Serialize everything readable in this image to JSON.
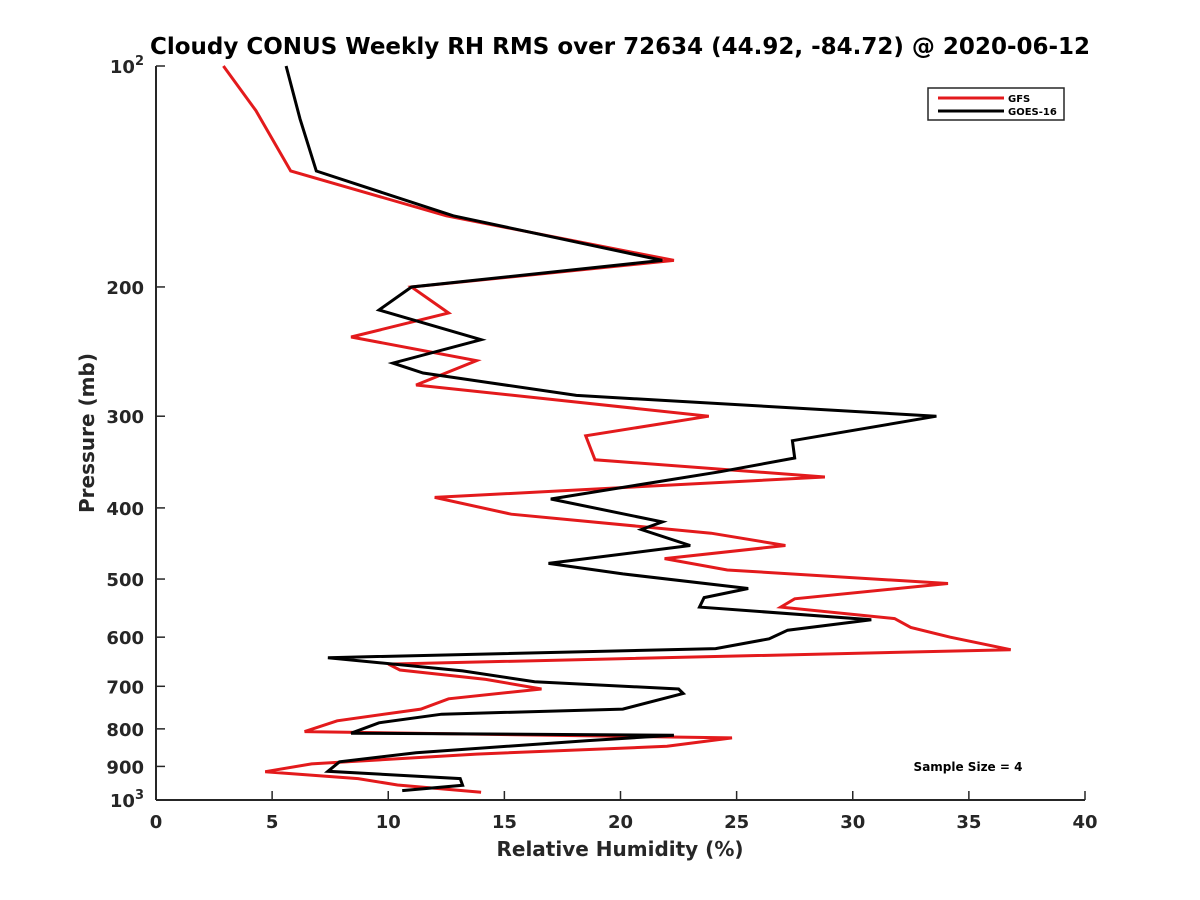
{
  "chart_data": {
    "type": "line",
    "title": "Cloudy CONUS Weekly RH RMS over 72634 (44.92, -84.72) @ 2020-06-12",
    "xlabel": "Relative Humidity (%)",
    "ylabel": "Pressure (mb)",
    "xlim": [
      0,
      40
    ],
    "ylim": [
      100,
      1000
    ],
    "yscale": "log",
    "y_inverted": true,
    "xticks": [
      0,
      5,
      10,
      15,
      20,
      25,
      30,
      35,
      40
    ],
    "yticks": [
      {
        "value": 100,
        "base": "10",
        "exp": "2"
      },
      {
        "value": 200,
        "label": "200"
      },
      {
        "value": 300,
        "label": "300"
      },
      {
        "value": 400,
        "label": "400"
      },
      {
        "value": 500,
        "label": "500"
      },
      {
        "value": 600,
        "label": "600"
      },
      {
        "value": 700,
        "label": "700"
      },
      {
        "value": 800,
        "label": "800"
      },
      {
        "value": 900,
        "label": "900"
      },
      {
        "value": 1000,
        "base": "10",
        "exp": "3"
      }
    ],
    "grid": false,
    "legend_position": "top-right",
    "annotation": "Sample Size = 4",
    "series": [
      {
        "name": "GFS",
        "color": "#e31a1c",
        "points": [
          [
            2.9,
            100
          ],
          [
            4.3,
            115
          ],
          [
            5.8,
            139
          ],
          [
            12.5,
            160
          ],
          [
            22.3,
            184
          ],
          [
            11.0,
            200
          ],
          [
            12.6,
            217
          ],
          [
            8.4,
            234
          ],
          [
            13.8,
            252
          ],
          [
            11.2,
            272
          ],
          [
            23.8,
            300
          ],
          [
            18.5,
            319
          ],
          [
            18.9,
            344
          ],
          [
            28.8,
            363
          ],
          [
            12.0,
            387
          ],
          [
            15.3,
            408
          ],
          [
            23.9,
            433
          ],
          [
            27.1,
            450
          ],
          [
            21.9,
            469
          ],
          [
            24.6,
            486
          ],
          [
            34.1,
            507
          ],
          [
            27.5,
            532
          ],
          [
            26.9,
            546
          ],
          [
            31.8,
            566
          ],
          [
            32.5,
            582
          ],
          [
            34.2,
            600
          ],
          [
            36.8,
            624
          ],
          [
            10.0,
            653
          ],
          [
            10.5,
            665
          ],
          [
            14.2,
            685
          ],
          [
            16.6,
            706
          ],
          [
            12.6,
            728
          ],
          [
            11.4,
            752
          ],
          [
            7.8,
            780
          ],
          [
            6.4,
            807
          ],
          [
            24.8,
            823
          ],
          [
            22.0,
            845
          ],
          [
            13.8,
            866
          ],
          [
            6.7,
            893
          ],
          [
            4.7,
            915
          ],
          [
            8.7,
            935
          ],
          [
            10.4,
            954
          ],
          [
            14.0,
            976
          ]
        ]
      },
      {
        "name": "GOES-16",
        "color": "#000000",
        "points": [
          [
            5.6,
            100
          ],
          [
            6.2,
            118
          ],
          [
            6.9,
            139
          ],
          [
            12.8,
            160
          ],
          [
            21.8,
            184
          ],
          [
            11.0,
            200
          ],
          [
            9.6,
            215
          ],
          [
            14.0,
            236
          ],
          [
            10.2,
            254
          ],
          [
            11.5,
            262
          ],
          [
            18.1,
            281
          ],
          [
            33.6,
            300
          ],
          [
            27.4,
            324
          ],
          [
            27.5,
            342
          ],
          [
            24.3,
            357
          ],
          [
            17.0,
            389
          ],
          [
            21.8,
            418
          ],
          [
            20.9,
            428
          ],
          [
            23.0,
            450
          ],
          [
            16.9,
            476
          ],
          [
            20.1,
            492
          ],
          [
            25.5,
            515
          ],
          [
            23.6,
            530
          ],
          [
            23.4,
            546
          ],
          [
            30.8,
            568
          ],
          [
            27.2,
            587
          ],
          [
            26.4,
            603
          ],
          [
            24.1,
            622
          ],
          [
            7.4,
            640
          ],
          [
            13.2,
            667
          ],
          [
            16.3,
            690
          ],
          [
            22.5,
            706
          ],
          [
            22.7,
            716
          ],
          [
            20.1,
            752
          ],
          [
            12.3,
            764
          ],
          [
            9.6,
            785
          ],
          [
            8.4,
            811
          ],
          [
            22.3,
            816
          ],
          [
            18.6,
            830
          ],
          [
            11.2,
            862
          ],
          [
            7.9,
            887
          ],
          [
            7.4,
            914
          ],
          [
            13.1,
            935
          ],
          [
            13.2,
            955
          ],
          [
            10.6,
            971
          ]
        ]
      }
    ]
  }
}
